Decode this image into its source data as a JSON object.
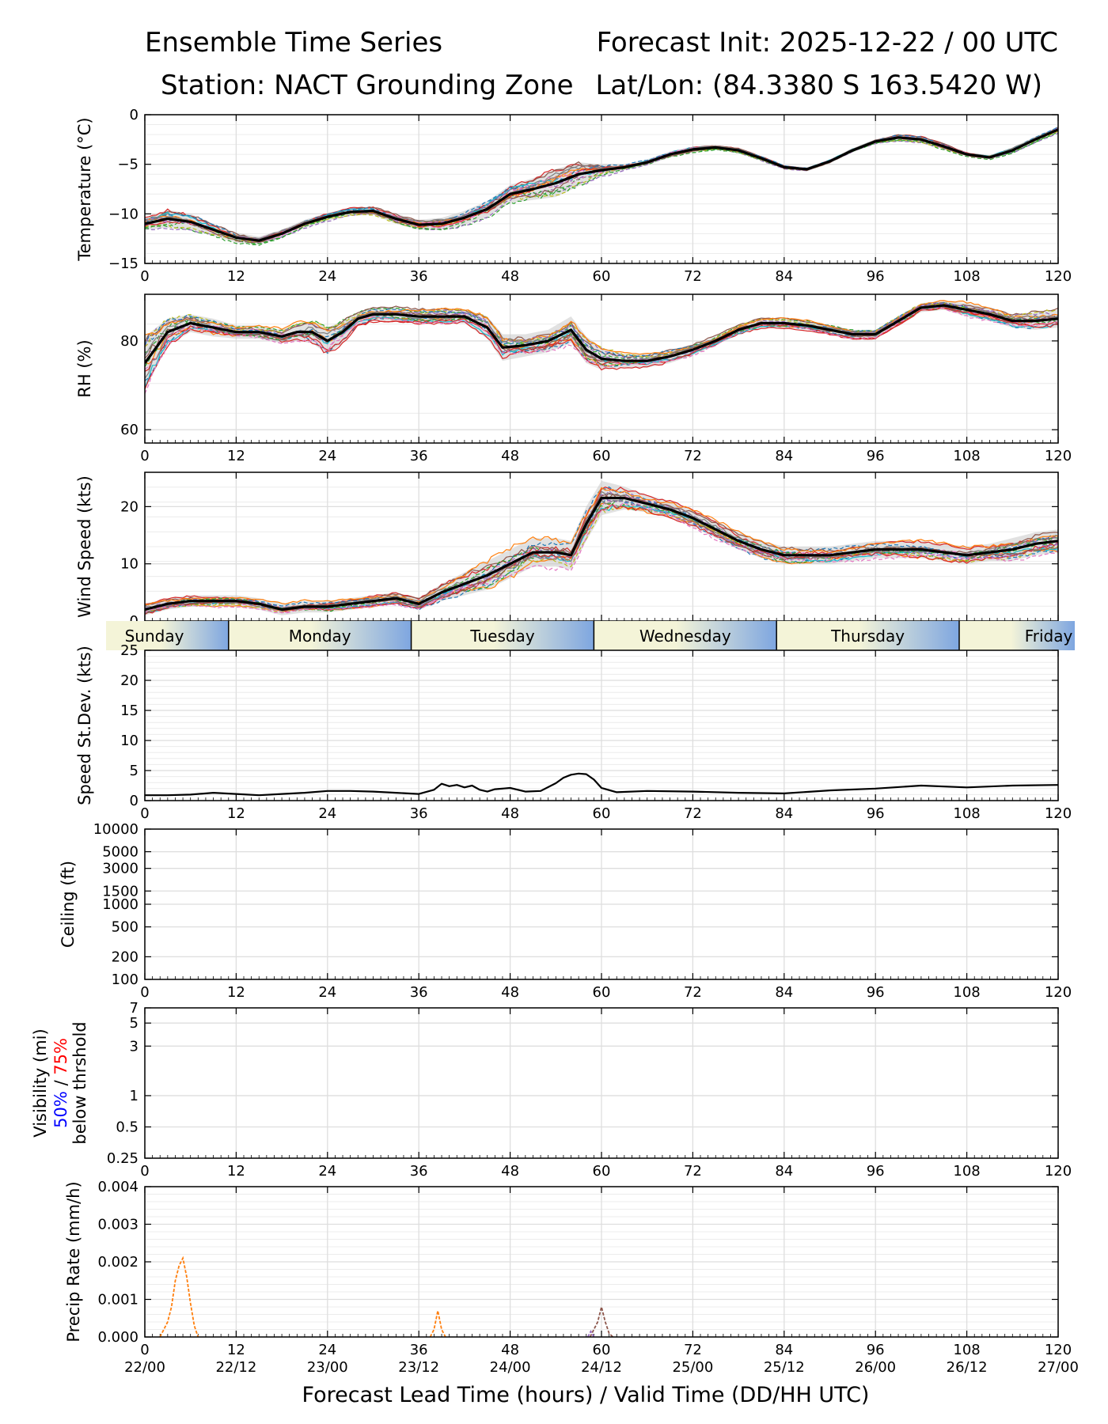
{
  "header": {
    "title": "Ensemble Time Series",
    "station": "Station: NACT Grounding Zone",
    "init": "Forecast Init: 2025-12-22 / 00 UTC",
    "latlon": "Lat/Lon: (84.3380 S 163.5420 W)"
  },
  "colors": {
    "members": [
      "#1f77b4",
      "#ff7f0e",
      "#2ca02c",
      "#d62728",
      "#9467bd",
      "#8c564b",
      "#e377c2",
      "#7f7f7f",
      "#bcbd22",
      "#17becf"
    ],
    "mean": "#000000",
    "spread": "#c8c8c8",
    "day_band_light": "#f4f4d8",
    "day_band_blue": "#7ea6e0",
    "vis_50": "#0000ff",
    "vis_75": "#ff0000"
  },
  "chart_data": [
    {
      "type": "line",
      "id": "temperature",
      "ylabel": "Temperature (°C)",
      "xlim": [
        0,
        120
      ],
      "ylim": [
        -15,
        0
      ],
      "xticks": [
        0,
        12,
        24,
        36,
        48,
        60,
        72,
        84,
        96,
        108,
        120
      ],
      "yticks": [
        -15,
        -10,
        -5,
        0
      ],
      "ytick_labels": [
        "−15",
        "−10",
        "−5",
        "0"
      ],
      "mean": {
        "x": [
          0,
          3,
          6,
          9,
          12,
          15,
          18,
          21,
          24,
          27,
          30,
          33,
          36,
          39,
          42,
          45,
          48,
          51,
          54,
          57,
          60,
          63,
          66,
          69,
          72,
          75,
          78,
          81,
          84,
          87,
          90,
          93,
          96,
          99,
          102,
          105,
          108,
          111,
          114,
          117,
          120
        ],
        "y": [
          -11.0,
          -10.5,
          -10.8,
          -11.6,
          -12.4,
          -12.7,
          -12.0,
          -11.0,
          -10.3,
          -9.8,
          -9.7,
          -10.5,
          -11.1,
          -11.0,
          -10.4,
          -9.5,
          -8.0,
          -7.5,
          -6.9,
          -6.0,
          -5.6,
          -5.3,
          -4.8,
          -4.0,
          -3.5,
          -3.3,
          -3.6,
          -4.4,
          -5.3,
          -5.5,
          -4.7,
          -3.6,
          -2.7,
          -2.3,
          -2.5,
          -3.2,
          -4.0,
          -4.3,
          -3.6,
          -2.5,
          -1.5
        ]
      },
      "spread": [
        0.6,
        0.9,
        0.8,
        0.6,
        0.5,
        0.4,
        0.4,
        0.4,
        0.4,
        0.4,
        0.4,
        0.5,
        0.5,
        0.6,
        0.7,
        0.8,
        0.9,
        1.1,
        1.4,
        1.2,
        0.6,
        0.3,
        0.3,
        0.3,
        0.3,
        0.2,
        0.2,
        0.2,
        0.2,
        0.2,
        0.2,
        0.2,
        0.2,
        0.3,
        0.3,
        0.3,
        0.2,
        0.2,
        0.3,
        0.3,
        0.3
      ]
    },
    {
      "type": "line",
      "id": "rh",
      "ylabel": "RH (%)",
      "xlim": [
        0,
        120
      ],
      "ylim": [
        57,
        90.5
      ],
      "xticks": [
        0,
        12,
        24,
        36,
        48,
        60,
        72,
        84,
        96,
        108,
        120
      ],
      "yticks": [
        60,
        80
      ],
      "ytick_labels": [
        "60",
        "80"
      ],
      "mean": {
        "x": [
          0,
          3,
          6,
          9,
          12,
          15,
          18,
          20,
          22,
          24,
          26,
          28,
          30,
          33,
          36,
          39,
          42,
          45,
          47,
          50,
          53,
          56,
          58,
          60,
          63,
          66,
          69,
          72,
          75,
          78,
          81,
          84,
          87,
          90,
          93,
          96,
          99,
          102,
          105,
          108,
          111,
          114,
          117,
          120
        ],
        "y": [
          75,
          82,
          84,
          83,
          82,
          82,
          81,
          82,
          82,
          80,
          82,
          85,
          86,
          86,
          85.5,
          85.5,
          85.5,
          83,
          78.5,
          79,
          80,
          82.5,
          78,
          76,
          75.5,
          75.5,
          76.5,
          78,
          80,
          82.5,
          84,
          84,
          83.5,
          82.5,
          81.5,
          81.5,
          84.5,
          87.5,
          88,
          87,
          86,
          84.5,
          84.5,
          85
        ]
      },
      "spread": [
        6,
        3,
        2,
        2,
        1.5,
        1.5,
        1.5,
        2,
        2.5,
        3,
        2.5,
        1.5,
        1.5,
        1.5,
        1.5,
        1.5,
        1.5,
        2.5,
        3,
        2.5,
        2.5,
        3,
        3,
        2.5,
        1.5,
        1.5,
        1.5,
        1.2,
        1,
        1,
        1,
        1,
        1,
        1,
        1,
        1,
        1,
        1,
        1,
        1.5,
        1.5,
        1.5,
        2,
        2
      ]
    },
    {
      "type": "line",
      "id": "wind_speed",
      "ylabel": "Wind Speed (kts)",
      "xlim": [
        0,
        120
      ],
      "ylim": [
        0,
        26
      ],
      "xticks": [
        0,
        12,
        24,
        36,
        48,
        60,
        72,
        84,
        96,
        108,
        120
      ],
      "yticks": [
        0,
        10,
        20
      ],
      "ytick_labels": [
        "0",
        "10",
        "20"
      ],
      "mean": {
        "x": [
          0,
          3,
          6,
          9,
          12,
          15,
          18,
          21,
          24,
          27,
          30,
          33,
          36,
          39,
          42,
          45,
          48,
          51,
          54,
          56,
          58,
          60,
          63,
          66,
          69,
          72,
          75,
          78,
          81,
          84,
          87,
          90,
          93,
          96,
          99,
          102,
          105,
          108,
          111,
          114,
          117,
          120
        ],
        "y": [
          2,
          3,
          3.5,
          3.5,
          3.5,
          3,
          2,
          2.5,
          2.5,
          3,
          3.5,
          4,
          3,
          5,
          6.5,
          8,
          10,
          12,
          12,
          11.5,
          17,
          21.5,
          21.5,
          20.5,
          19.5,
          18,
          16,
          14,
          12.5,
          11.5,
          11.5,
          11.5,
          12,
          12.5,
          12.5,
          12.5,
          12,
          11.5,
          12,
          12.5,
          13.5,
          14
        ]
      },
      "spread": [
        1,
        1,
        1,
        1,
        1,
        1,
        1,
        1,
        1,
        1,
        1,
        1,
        1,
        1.5,
        2,
        2.5,
        2.5,
        2.5,
        2.5,
        2.5,
        3,
        3,
        2,
        1.5,
        1.5,
        1.5,
        1.5,
        1.5,
        1.5,
        1.5,
        1.5,
        1.5,
        1.5,
        1.5,
        1.5,
        1.5,
        1.5,
        1.5,
        1.5,
        2,
        2,
        2
      ]
    },
    {
      "type": "line",
      "id": "speed_stdev",
      "ylabel": "Speed St.Dev. (kts)",
      "xlim": [
        0,
        120
      ],
      "ylim": [
        0,
        25
      ],
      "xticks": [
        0,
        12,
        24,
        36,
        48,
        60,
        72,
        84,
        96,
        108,
        120
      ],
      "yticks": [
        0,
        5,
        10,
        15,
        20,
        25
      ],
      "ytick_labels": [
        "0",
        "5",
        "10",
        "15",
        "20",
        "25"
      ],
      "mean": {
        "x": [
          0,
          3,
          6,
          9,
          12,
          15,
          18,
          21,
          24,
          27,
          30,
          33,
          36,
          38,
          39,
          40,
          41,
          42,
          43,
          44,
          45,
          46,
          48,
          50,
          52,
          54,
          55,
          56,
          57,
          58,
          59,
          60,
          62,
          66,
          72,
          78,
          84,
          90,
          96,
          102,
          108,
          114,
          120
        ],
        "y": [
          0.9,
          0.9,
          1.0,
          1.3,
          1.1,
          0.9,
          1.1,
          1.3,
          1.6,
          1.6,
          1.5,
          1.3,
          1.1,
          1.8,
          2.8,
          2.4,
          2.6,
          2.2,
          2.5,
          1.8,
          1.5,
          1.9,
          2.1,
          1.5,
          1.6,
          2.9,
          3.8,
          4.3,
          4.5,
          4.4,
          3.5,
          2.1,
          1.4,
          1.6,
          1.5,
          1.3,
          1.2,
          1.7,
          2.0,
          2.5,
          2.2,
          2.5,
          2.6
        ]
      }
    },
    {
      "type": "line",
      "id": "ceiling",
      "ylabel": "Ceiling (ft)",
      "xlim": [
        0,
        120
      ],
      "ylim": [
        100,
        10000
      ],
      "yscale": "log",
      "xticks": [
        0,
        12,
        24,
        36,
        48,
        60,
        72,
        84,
        96,
        108,
        120
      ],
      "yticks": [
        100,
        200,
        500,
        1000,
        1500,
        3000,
        5000,
        10000
      ],
      "ytick_labels": [
        "100",
        "200",
        "500",
        "1000",
        "1500",
        "3000",
        "5000",
        "10000"
      ]
    },
    {
      "type": "line",
      "id": "visibility",
      "ylabel": "Visibility (mi)",
      "ylabel_50": "50%",
      "ylabel_sep": " / ",
      "ylabel_75": "75%",
      "ylabel_sub": "below thrshold",
      "xlim": [
        0,
        120
      ],
      "ylim": [
        0.25,
        7
      ],
      "yscale": "log",
      "xticks": [
        0,
        12,
        24,
        36,
        48,
        60,
        72,
        84,
        96,
        108,
        120
      ],
      "yticks": [
        0.25,
        0.5,
        1,
        3,
        5,
        7
      ],
      "ytick_labels": [
        "0.25",
        "0.5",
        "1",
        "3",
        "5",
        "7"
      ]
    },
    {
      "type": "line",
      "id": "precip_rate",
      "ylabel": "Precip Rate (mm/h)",
      "xlabel": "Forecast Lead Time (hours) / Valid Time (DD/HH UTC)",
      "xlim": [
        0,
        120
      ],
      "ylim": [
        0,
        0.004
      ],
      "xticks": [
        0,
        12,
        24,
        36,
        48,
        60,
        72,
        84,
        96,
        108,
        120
      ],
      "valid_time_labels": [
        "22/00",
        "22/12",
        "23/00",
        "23/12",
        "24/00",
        "24/12",
        "25/00",
        "25/12",
        "26/00",
        "26/12",
        "27/00"
      ],
      "yticks": [
        0,
        0.001,
        0.002,
        0.003,
        0.004
      ],
      "ytick_labels": [
        "0.000",
        "0.001",
        "0.002",
        "0.003",
        "0.004"
      ],
      "series": [
        {
          "name": "member-orange-a",
          "color_index": 1,
          "x": [
            2,
            2.5,
            3,
            3.5,
            4,
            4.5,
            5,
            5.5,
            6,
            6.5,
            7
          ],
          "y": [
            0,
            0.0002,
            0.0004,
            0.0008,
            0.0015,
            0.0019,
            0.0021,
            0.0016,
            0.0009,
            0.0003,
            0
          ]
        },
        {
          "name": "member-orange-b",
          "color_index": 1,
          "x": [
            37.5,
            38,
            38.5,
            39,
            39.5
          ],
          "y": [
            0,
            0.0002,
            0.0007,
            0.0002,
            0
          ]
        },
        {
          "name": "member-brown",
          "color_index": 5,
          "x": [
            58.5,
            59,
            59.5,
            60,
            60.5,
            61,
            61.5
          ],
          "y": [
            0,
            0.0002,
            0.0004,
            0.0008,
            0.0004,
            0.0001,
            0
          ]
        },
        {
          "name": "member-purple",
          "color_index": 4,
          "x": [
            58.2,
            58.6,
            59
          ],
          "y": [
            0,
            0.00015,
            0
          ]
        }
      ]
    }
  ],
  "day_band": {
    "labels": [
      "Sunday",
      "Monday",
      "Tuesday",
      "Wednesday",
      "Thursday",
      "Friday"
    ],
    "label_hours": [
      0,
      23,
      47,
      71,
      95,
      119
    ],
    "separator_hours": [
      11,
      35,
      59,
      83,
      107
    ]
  }
}
